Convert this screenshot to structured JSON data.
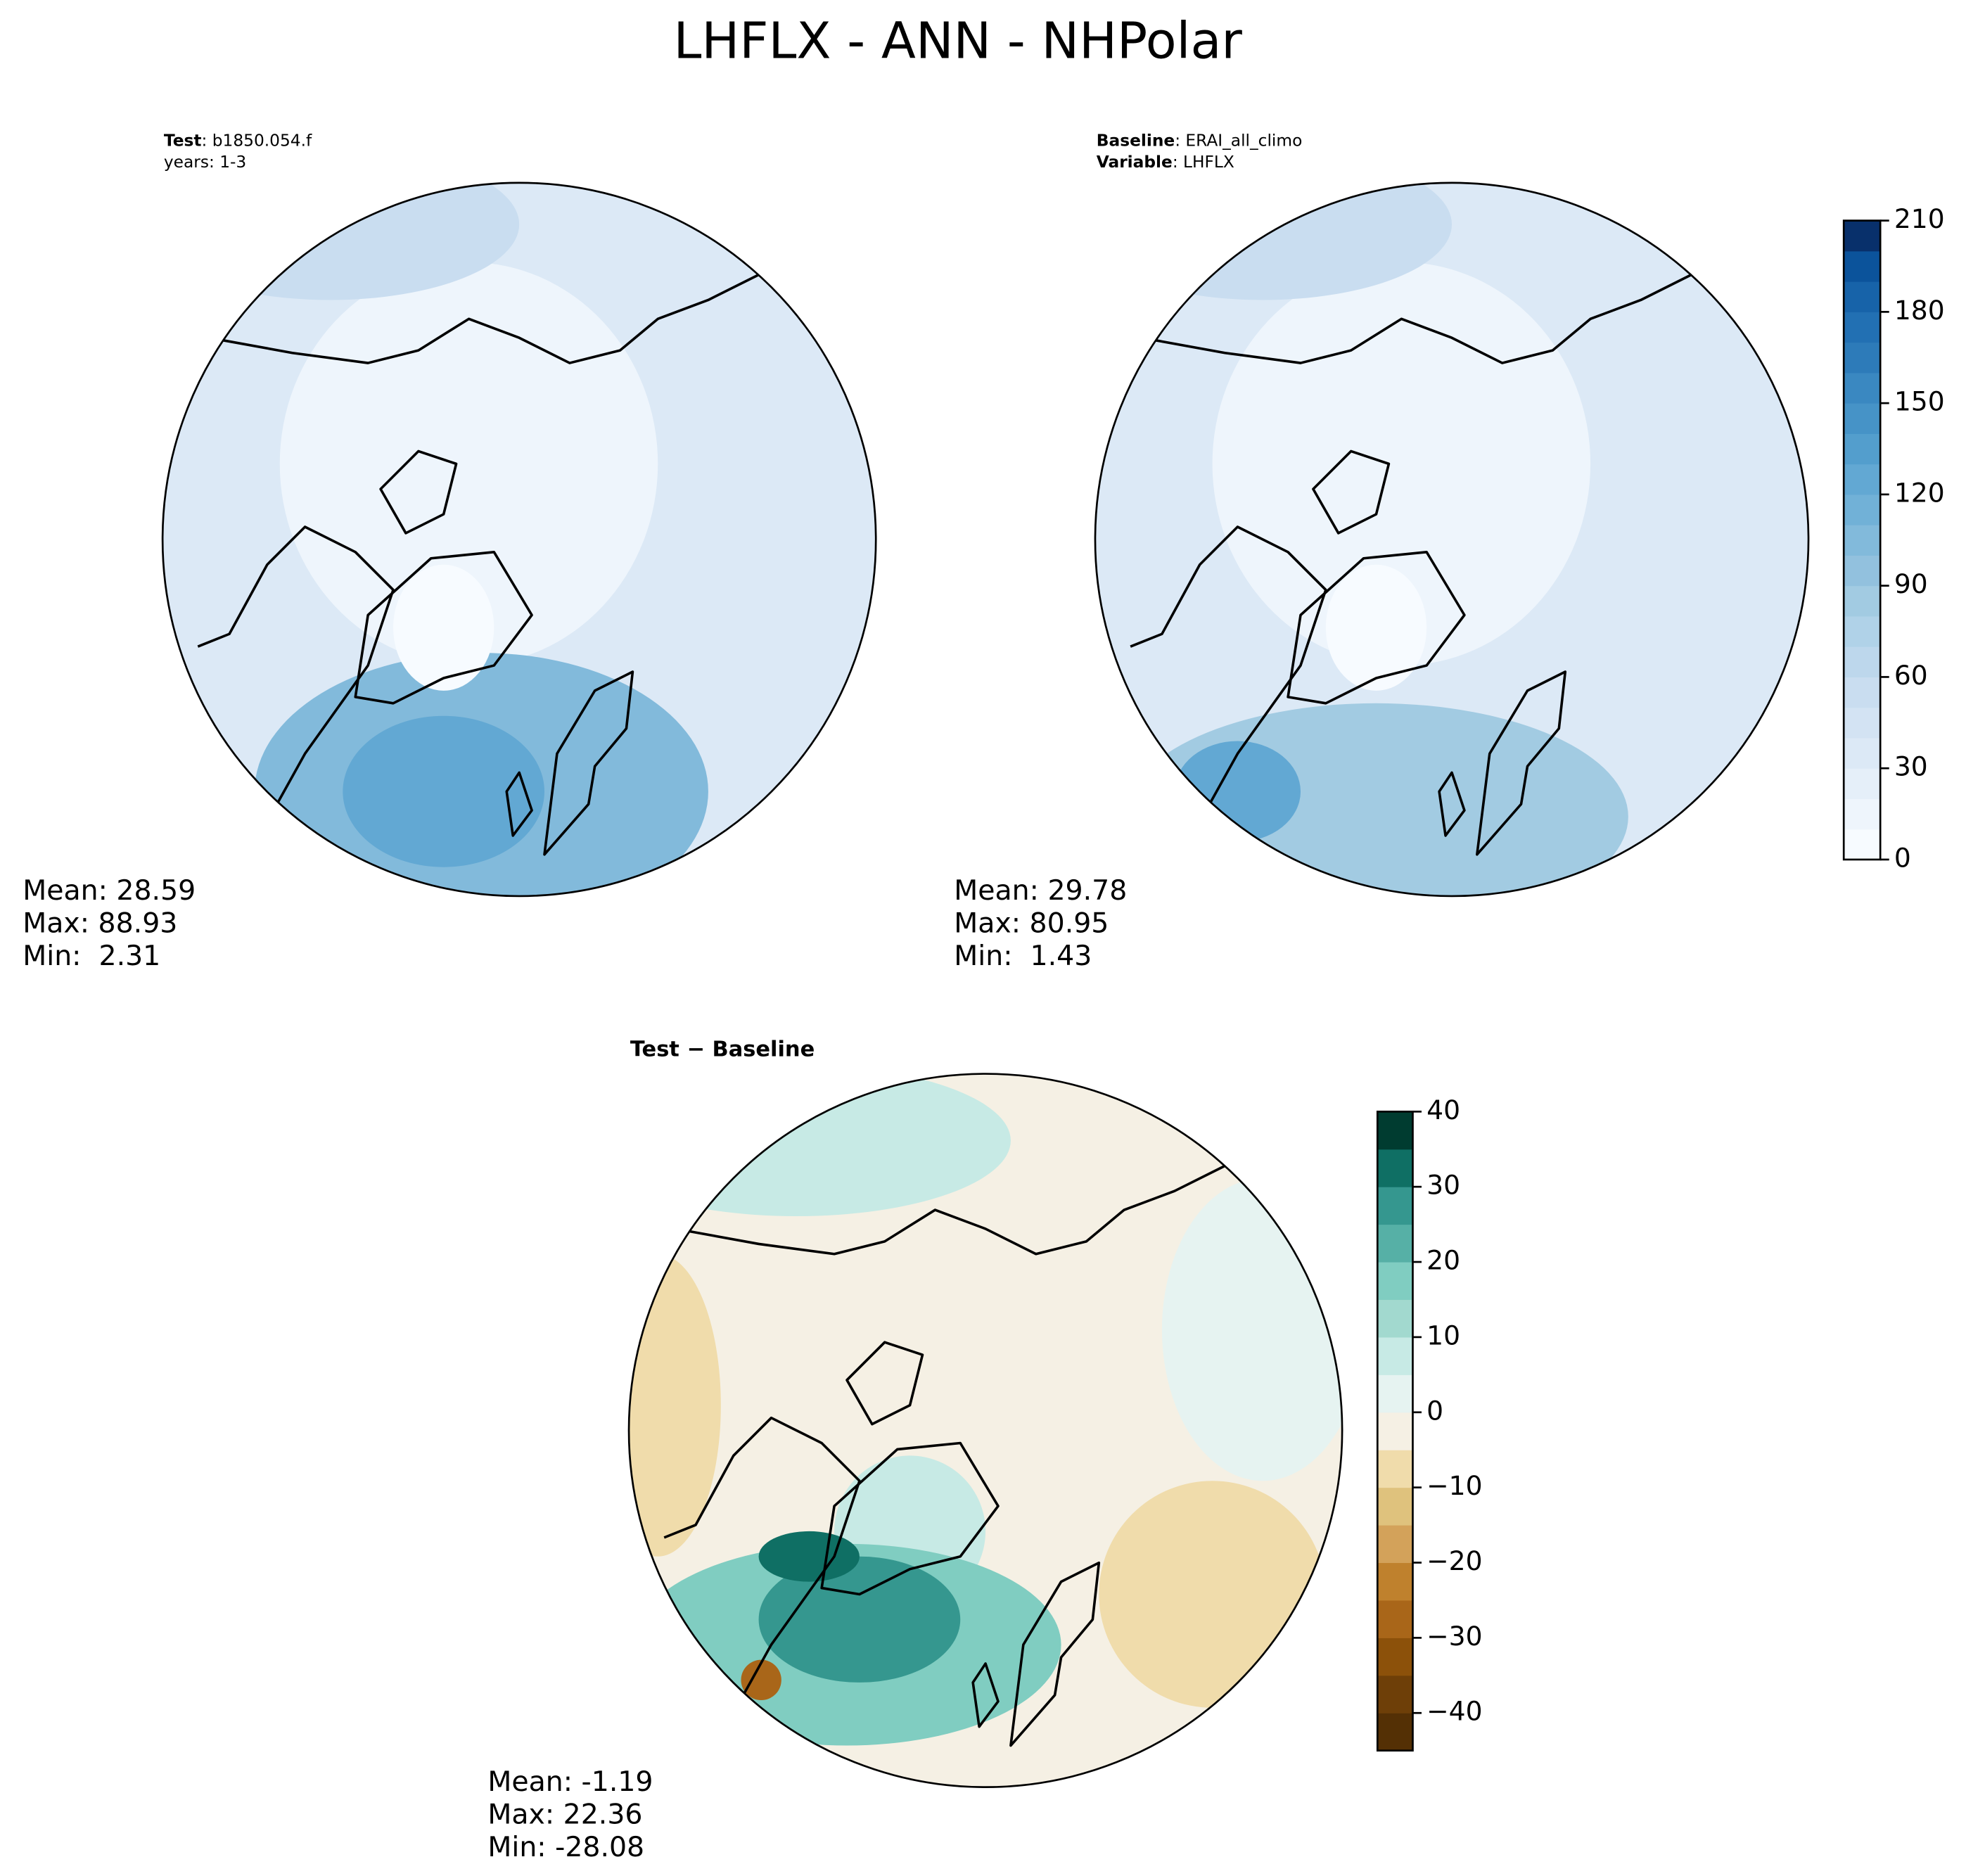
{
  "title": "LHFLX - ANN - NHPolar",
  "panels": [
    {
      "header": [
        {
          "bold": "Test",
          "text": ": b1850.054.f"
        },
        {
          "text": "years: 1-3"
        }
      ],
      "stats": [
        "Mean: 28.59",
        "Max: 88.93",
        "Min:  2.31"
      ]
    },
    {
      "header": [
        {
          "bold": "Baseline",
          "text": ": ERAI_all_climo"
        },
        {
          "bold": "Variable",
          "text": ": LHFLX"
        }
      ],
      "stats": [
        "Mean: 29.78",
        "Max: 80.95",
        "Min:  1.43"
      ]
    },
    {
      "header": [
        {
          "bold": "Test − Baseline"
        }
      ],
      "stats": [
        "Mean: -1.19",
        "Max: 22.36",
        "Min: -28.08"
      ]
    }
  ],
  "colorbars": [
    {
      "lim": [
        0,
        210
      ],
      "ticks": [
        0,
        30,
        60,
        90,
        120,
        150,
        180,
        210
      ],
      "colors": [
        "#f7fbff",
        "#eef5fc",
        "#e5eff9",
        "#dce9f6",
        "#d3e3f3",
        "#c9ddf0",
        "#bdd7ec",
        "#b0d2e8",
        "#a2cbe2",
        "#92c1de",
        "#82badb",
        "#71b1d7",
        "#62a8d3",
        "#539ecd",
        "#4693c7",
        "#3a88c1",
        "#2d7bb9",
        "#2270b3",
        "#1763a9",
        "#0b539b",
        "#08306b"
      ]
    },
    {
      "lim": [
        -45,
        40
      ],
      "ticks": [
        {
          "value": -40,
          "label": "−40"
        },
        {
          "value": -30,
          "label": "−30"
        },
        {
          "value": -20,
          "label": "−20"
        },
        {
          "value": -10,
          "label": "−10"
        },
        0,
        10,
        20,
        30,
        40
      ],
      "colors": [
        "#543005",
        "#6e3f08",
        "#8c510a",
        "#a96619",
        "#bf812d",
        "#d3a25a",
        "#dfc27d",
        "#f0dcab",
        "#f5f0e4",
        "#e6f3f1",
        "#c7eae5",
        "#a2d9cf",
        "#80cdc1",
        "#56b0a6",
        "#35978f",
        "#0f6f64",
        "#003c30"
      ]
    }
  ]
}
